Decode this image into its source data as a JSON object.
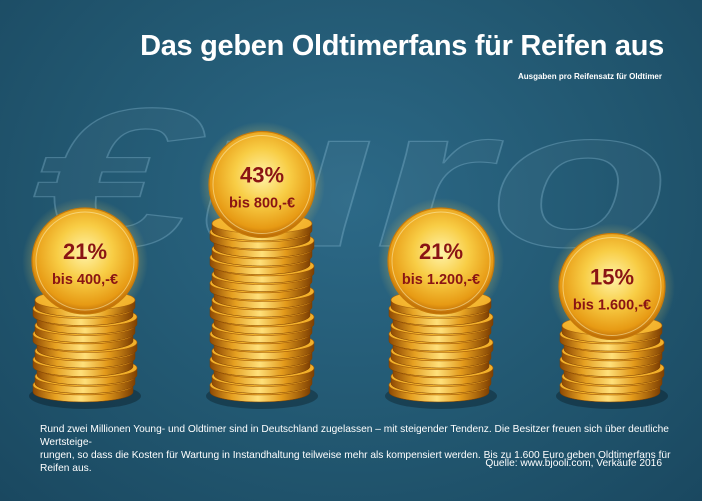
{
  "title": "Das geben Oldtimerfans für Reifen aus",
  "subtitle": "Ausgaben pro Reifensatz für Oldtimer",
  "watermark": "€uro",
  "description_line1": "Rund zwei Millionen Young- und Oldtimer sind in Deutschland zugelassen – mit steigender Tendenz. Die Besitzer freuen sich über deutliche Wertsteige-",
  "description_line2": "rungen, so dass die Kosten für Wartung in Instandhaltung teilweise mehr als kompensiert werden. Bis zu 1.600 Euro geben Oldtimerfans für Reifen aus.",
  "source": "Quelle: www.bjooli.com, Verkäufe 2016",
  "colors": {
    "background": "#21566f",
    "coin_gold": "#f0a81c",
    "coin_text": "#8a1414",
    "title_text": "#ffffff"
  },
  "chart_data": {
    "type": "bar",
    "title": "Das geben Oldtimerfans für Reifen aus",
    "subtitle": "Ausgaben pro Reifensatz für Oldtimer",
    "categories": [
      "bis 400,-€",
      "bis 800,-€",
      "bis 1.200,-€",
      "bis 1.600,-€"
    ],
    "values": [
      21,
      43,
      21,
      15
    ],
    "value_labels": [
      "21%",
      "43%",
      "21%",
      "15%"
    ],
    "unit": "%",
    "visual": "coin stacks"
  }
}
